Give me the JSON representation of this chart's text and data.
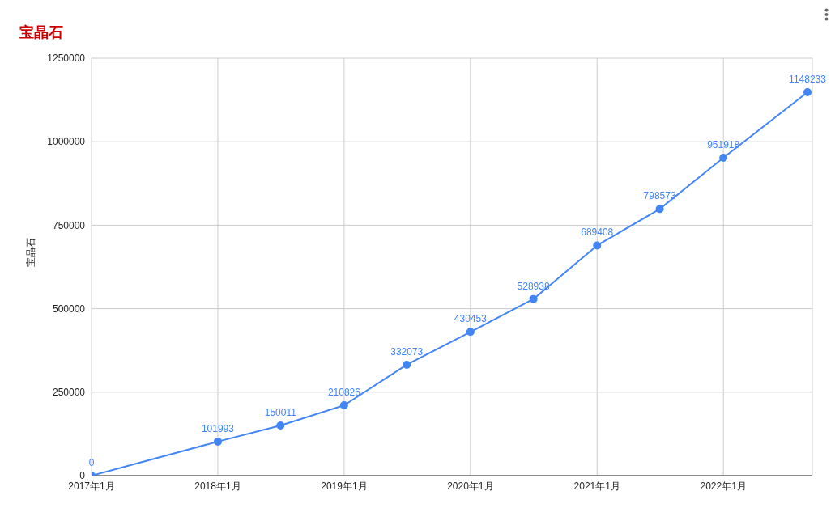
{
  "chart_data": {
    "type": "line",
    "title": "宝晶石",
    "ylabel": "宝晶石",
    "x": [
      "2017-01",
      "2018-01",
      "2018-07",
      "2019-01",
      "2019-07",
      "2020-01",
      "2020-07",
      "2021-01",
      "2021-07",
      "2022-01",
      "2022-09"
    ],
    "series": [
      {
        "color": "#4285f4",
        "values": [
          0,
          101993,
          150011,
          210826,
          332073,
          430453,
          528938,
          689408,
          798573,
          951918,
          1148233
        ]
      }
    ],
    "xlim": [
      "2017-01",
      "2022-09-15"
    ],
    "xticks": [
      {
        "value": "2017-01",
        "label": "2017年1月"
      },
      {
        "value": "2018-01",
        "label": "2018年1月"
      },
      {
        "value": "2019-01",
        "label": "2019年1月"
      },
      {
        "value": "2020-01",
        "label": "2020年1月"
      },
      {
        "value": "2021-01",
        "label": "2021年1月"
      },
      {
        "value": "2022-01",
        "label": "2022年1月"
      }
    ],
    "ylim": [
      0,
      1250000
    ],
    "yticks": [
      0,
      250000,
      500000,
      750000,
      1000000,
      1250000
    ],
    "grid": true,
    "marker": "circle",
    "data_labels": true
  }
}
